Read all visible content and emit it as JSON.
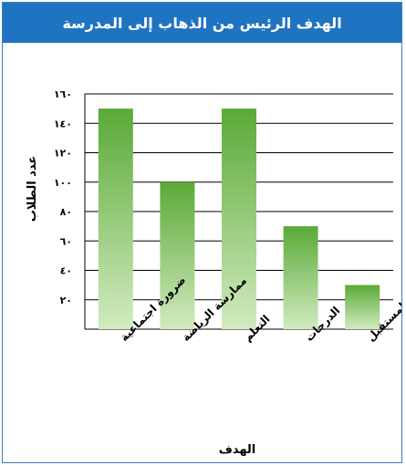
{
  "chart_data": {
    "type": "bar",
    "title": "الهدف الرئيس من الذهاب إلى المدرسة",
    "xlabel": "الهدف",
    "ylabel": "عدد الطلاب",
    "categories": [
      "ضرورة اجتماعية",
      "ممارسة الرياضة",
      "التعلم",
      "الدرجات",
      "الاستعداد للمستقبل"
    ],
    "values": [
      150,
      100,
      150,
      70,
      30
    ],
    "ylim": [
      0,
      160
    ],
    "yticks": [
      20,
      40,
      60,
      80,
      100,
      120,
      140,
      160
    ],
    "ytick_labels": [
      "٢٠",
      "٤٠",
      "٦٠",
      "٨٠",
      "١٠٠",
      "١٢٠",
      "١٤٠",
      "١٦٠"
    ],
    "grid": true,
    "bar_color": "#5aaa37",
    "bar_highlight": "#d2ebc0"
  },
  "colors": {
    "title_bar": "#1f74c1",
    "frame_border": "#3a7cc0",
    "grid": "#000000"
  }
}
